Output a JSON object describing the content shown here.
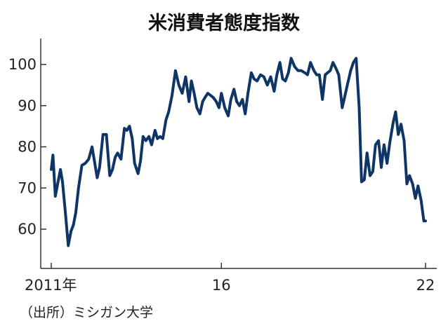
{
  "chart_data": {
    "type": "line",
    "title": "米消費者態度指数",
    "source": "（出所）ミシガン大学",
    "xlabel": "",
    "ylabel": "",
    "x_tick_labels": [
      {
        "x": 2011.0,
        "label": "2011年"
      },
      {
        "x": 2016.0,
        "label": "16"
      },
      {
        "x": 2022.0,
        "label": "22"
      }
    ],
    "y_ticks": [
      60,
      70,
      80,
      90,
      100
    ],
    "xlim": [
      2011.0,
      2022.0
    ],
    "ylim": [
      52,
      106
    ],
    "grid": false,
    "line_color": "#0f3566",
    "series": [
      {
        "x": [
          2011.0,
          2011.05,
          2011.12,
          2011.2,
          2011.27,
          2011.33,
          2011.42,
          2011.5,
          2011.58,
          2011.65,
          2011.72,
          2011.8,
          2011.9,
          2012.0,
          2012.1,
          2012.2,
          2012.3,
          2012.35,
          2012.42,
          2012.52,
          2012.62,
          2012.72,
          2012.8,
          2012.88,
          2012.95,
          2013.05,
          2013.15,
          2013.22,
          2013.3,
          2013.38,
          2013.45,
          2013.55,
          2013.62,
          2013.7,
          2013.78,
          2013.87,
          2013.95,
          2014.05,
          2014.12,
          2014.2,
          2014.28,
          2014.37,
          2014.45,
          2014.55,
          2014.65,
          2014.75,
          2014.85,
          2014.95,
          2015.05,
          2015.12,
          2015.2,
          2015.28,
          2015.37,
          2015.45,
          2015.52,
          2015.6,
          2015.68,
          2015.76,
          2015.85,
          2015.93,
          2016.0,
          2016.1,
          2016.2,
          2016.28,
          2016.37,
          2016.45,
          2016.53,
          2016.62,
          2016.7,
          2016.78,
          2016.88,
          2016.96,
          2017.05,
          2017.15,
          2017.25,
          2017.35,
          2017.45,
          2017.55,
          2017.63,
          2017.72,
          2017.8,
          2017.88,
          2017.97,
          2018.05,
          2018.15,
          2018.25,
          2018.35,
          2018.45,
          2018.53,
          2018.62,
          2018.72,
          2018.8,
          2018.88,
          2018.97,
          2019.05,
          2019.12,
          2019.2,
          2019.28,
          2019.37,
          2019.45,
          2019.55,
          2019.62,
          2019.7,
          2019.8,
          2019.88,
          2019.96,
          2020.05,
          2020.12,
          2020.2,
          2020.28,
          2020.37,
          2020.45,
          2020.53,
          2020.62,
          2020.7,
          2020.78,
          2020.87,
          2020.95,
          2021.05,
          2021.12,
          2021.2,
          2021.28,
          2021.37,
          2021.45,
          2021.53,
          2021.62,
          2021.7,
          2021.78,
          2021.87,
          2021.95,
          2022.0
        ],
        "values": [
          74.5,
          78.0,
          68.0,
          71.5,
          74.5,
          71.5,
          63.5,
          56.0,
          59.5,
          61.0,
          64.0,
          70.0,
          75.5,
          76.0,
          77.0,
          80.0,
          75.0,
          72.5,
          75.0,
          83.0,
          83.0,
          73.0,
          74.5,
          77.5,
          78.5,
          77.0,
          84.5,
          84.0,
          85.0,
          82.0,
          76.0,
          73.5,
          76.5,
          82.5,
          81.5,
          82.5,
          80.5,
          84.0,
          82.0,
          82.5,
          82.0,
          86.5,
          88.5,
          92.5,
          98.5,
          95.0,
          93.0,
          97.0,
          91.0,
          96.0,
          93.0,
          89.5,
          88.0,
          91.0,
          92.0,
          93.0,
          92.5,
          92.0,
          91.0,
          89.5,
          93.0,
          89.5,
          87.5,
          91.5,
          94.0,
          91.0,
          90.0,
          91.5,
          88.0,
          93.0,
          98.0,
          96.5,
          96.0,
          97.5,
          97.0,
          95.0,
          97.0,
          93.5,
          97.5,
          100.5,
          96.5,
          96.0,
          98.0,
          101.5,
          99.5,
          98.5,
          98.5,
          98.0,
          97.5,
          100.5,
          98.5,
          97.5,
          97.5,
          91.5,
          97.5,
          98.0,
          98.5,
          100.5,
          99.0,
          97.5,
          89.5,
          92.0,
          95.0,
          98.5,
          100.5,
          101.5,
          89.5,
          71.5,
          72.0,
          78.5,
          73.0,
          74.0,
          80.5,
          81.5,
          75.0,
          80.5,
          76.0,
          81.0,
          86.0,
          88.5,
          83.0,
          85.5,
          81.5,
          71.0,
          73.0,
          71.0,
          67.5,
          70.5,
          67.0,
          62.0,
          62.0
        ]
      }
    ]
  }
}
